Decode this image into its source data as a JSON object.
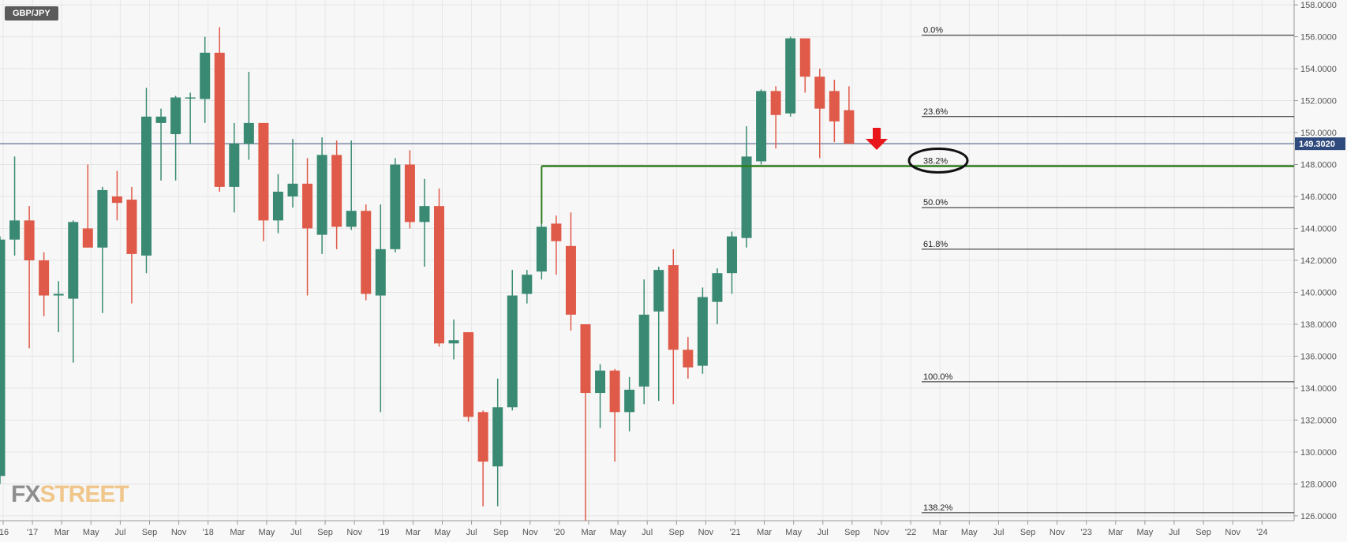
{
  "header": {
    "symbol": "GBP/JPY"
  },
  "watermark": {
    "part1": "FX",
    "part2": "STREET"
  },
  "chart_data": {
    "type": "candlestick",
    "title": "GBP/JPY",
    "timeframe": "monthly",
    "ylim": [
      125.7,
      158.3
    ],
    "y_ticks": [
      "126.0000",
      "128.0000",
      "130.0000",
      "132.0000",
      "134.0000",
      "136.0000",
      "138.0000",
      "140.0000",
      "142.0000",
      "144.0000",
      "146.0000",
      "148.0000",
      "150.0000",
      "152.0000",
      "154.0000",
      "156.0000",
      "158.0000"
    ],
    "x_ticks": [
      "'16",
      "'17",
      "Mar",
      "May",
      "Jul",
      "Sep",
      "Nov",
      "'18",
      "Mar",
      "May",
      "Jul",
      "Sep",
      "Nov",
      "'19",
      "Mar",
      "May",
      "Jul",
      "Sep",
      "Nov",
      "'20",
      "Mar",
      "May",
      "Jul",
      "Sep",
      "Nov",
      "'21",
      "Mar",
      "May",
      "Jul",
      "Sep",
      "Nov",
      "'22",
      "Mar",
      "May",
      "Jul",
      "Sep",
      "Nov",
      "'23",
      "Mar",
      "May",
      "Jul",
      "Sep",
      "Nov",
      "'24"
    ],
    "candles": [
      {
        "date": "2016-12",
        "o": 128.5,
        "h": 143.5,
        "l": 128.0,
        "c": 143.3
      },
      {
        "date": "2017-01",
        "o": 143.3,
        "h": 148.5,
        "l": 142.3,
        "c": 144.5
      },
      {
        "date": "2017-02",
        "o": 144.5,
        "h": 145.4,
        "l": 136.5,
        "c": 142.0
      },
      {
        "date": "2017-03",
        "o": 142.0,
        "h": 142.5,
        "l": 138.5,
        "c": 139.8
      },
      {
        "date": "2017-04",
        "o": 139.8,
        "h": 140.7,
        "l": 137.5,
        "c": 139.9
      },
      {
        "date": "2017-05",
        "o": 139.6,
        "h": 144.5,
        "l": 135.6,
        "c": 144.4
      },
      {
        "date": "2017-06",
        "o": 144.0,
        "h": 148.0,
        "l": 142.8,
        "c": 142.8
      },
      {
        "date": "2017-07",
        "o": 142.8,
        "h": 146.6,
        "l": 138.7,
        "c": 146.4
      },
      {
        "date": "2017-08",
        "o": 146.0,
        "h": 147.6,
        "l": 144.5,
        "c": 145.6
      },
      {
        "date": "2017-09",
        "o": 145.8,
        "h": 146.6,
        "l": 139.3,
        "c": 142.4
      },
      {
        "date": "2017-10",
        "o": 142.3,
        "h": 152.8,
        "l": 141.2,
        "c": 151.0
      },
      {
        "date": "2017-11",
        "o": 150.6,
        "h": 151.5,
        "l": 147.0,
        "c": 151.0
      },
      {
        "date": "2017-12",
        "o": 149.9,
        "h": 152.3,
        "l": 147.0,
        "c": 152.2
      },
      {
        "date": "2018-01",
        "o": 152.2,
        "h": 152.5,
        "l": 149.3,
        "c": 152.2
      },
      {
        "date": "2018-02",
        "o": 152.1,
        "h": 156.0,
        "l": 150.6,
        "c": 155.0
      },
      {
        "date": "2018-03",
        "o": 155.0,
        "h": 156.6,
        "l": 146.3,
        "c": 146.6
      },
      {
        "date": "2018-04",
        "o": 146.6,
        "h": 150.6,
        "l": 145.0,
        "c": 149.3
      },
      {
        "date": "2018-05",
        "o": 149.3,
        "h": 153.8,
        "l": 148.3,
        "c": 150.6
      },
      {
        "date": "2018-06",
        "o": 150.6,
        "h": 150.6,
        "l": 143.2,
        "c": 144.5
      },
      {
        "date": "2018-07",
        "o": 144.5,
        "h": 147.4,
        "l": 143.7,
        "c": 146.3
      },
      {
        "date": "2018-08",
        "o": 146.0,
        "h": 149.6,
        "l": 145.3,
        "c": 146.8
      },
      {
        "date": "2018-09",
        "o": 146.8,
        "h": 148.4,
        "l": 139.8,
        "c": 144.0
      },
      {
        "date": "2018-10",
        "o": 143.6,
        "h": 149.7,
        "l": 142.4,
        "c": 148.6
      },
      {
        "date": "2018-11",
        "o": 148.6,
        "h": 149.5,
        "l": 142.7,
        "c": 144.1
      },
      {
        "date": "2018-12",
        "o": 144.1,
        "h": 149.5,
        "l": 143.9,
        "c": 145.1
      },
      {
        "date": "2019-01",
        "o": 145.1,
        "h": 145.5,
        "l": 139.5,
        "c": 139.9
      },
      {
        "date": "2019-02",
        "o": 139.8,
        "h": 145.5,
        "l": 132.5,
        "c": 142.7
      },
      {
        "date": "2019-03",
        "o": 142.7,
        "h": 148.4,
        "l": 142.5,
        "c": 148.0
      },
      {
        "date": "2019-04",
        "o": 148.0,
        "h": 148.9,
        "l": 144.0,
        "c": 144.4
      },
      {
        "date": "2019-05",
        "o": 144.4,
        "h": 147.1,
        "l": 141.6,
        "c": 145.4
      },
      {
        "date": "2019-06",
        "o": 145.4,
        "h": 146.5,
        "l": 136.6,
        "c": 136.8
      },
      {
        "date": "2019-07",
        "o": 136.8,
        "h": 138.3,
        "l": 135.8,
        "c": 137.0
      },
      {
        "date": "2019-08",
        "o": 137.5,
        "h": 137.5,
        "l": 131.9,
        "c": 132.2
      },
      {
        "date": "2019-09",
        "o": 132.5,
        "h": 132.6,
        "l": 126.6,
        "c": 129.4
      },
      {
        "date": "2019-10",
        "o": 129.1,
        "h": 134.6,
        "l": 126.6,
        "c": 132.8
      },
      {
        "date": "2019-11",
        "o": 132.8,
        "h": 141.4,
        "l": 132.6,
        "c": 139.8
      },
      {
        "date": "2019-12",
        "o": 139.9,
        "h": 141.4,
        "l": 139.3,
        "c": 141.1
      },
      {
        "date": "2019-12b",
        "o": 141.3,
        "h": 147.9,
        "l": 140.8,
        "c": 144.1
      },
      {
        "date": "2020-01",
        "o": 144.3,
        "h": 144.8,
        "l": 141.1,
        "c": 143.2
      },
      {
        "date": "2020-02",
        "o": 142.9,
        "h": 145.0,
        "l": 137.6,
        "c": 138.6
      },
      {
        "date": "2020-03",
        "o": 138.0,
        "h": 138.0,
        "l": 125.7,
        "c": 133.7
      },
      {
        "date": "2020-04",
        "o": 133.7,
        "h": 135.5,
        "l": 131.5,
        "c": 135.1
      },
      {
        "date": "2020-05",
        "o": 135.1,
        "h": 135.2,
        "l": 129.4,
        "c": 132.5
      },
      {
        "date": "2020-06",
        "o": 132.5,
        "h": 134.7,
        "l": 131.3,
        "c": 133.9
      },
      {
        "date": "2020-07",
        "o": 134.1,
        "h": 140.8,
        "l": 133.0,
        "c": 138.6
      },
      {
        "date": "2020-08",
        "o": 138.8,
        "h": 141.6,
        "l": 133.2,
        "c": 141.4
      },
      {
        "date": "2020-09",
        "o": 141.7,
        "h": 142.7,
        "l": 133.0,
        "c": 136.4
      },
      {
        "date": "2020-10",
        "o": 136.4,
        "h": 137.2,
        "l": 134.6,
        "c": 135.3
      },
      {
        "date": "2020-11",
        "o": 135.4,
        "h": 140.3,
        "l": 134.9,
        "c": 139.7
      },
      {
        "date": "2020-12",
        "o": 139.4,
        "h": 141.5,
        "l": 138.0,
        "c": 141.2
      },
      {
        "date": "2021-01",
        "o": 141.2,
        "h": 143.8,
        "l": 139.9,
        "c": 143.5
      },
      {
        "date": "2021-02",
        "o": 143.4,
        "h": 150.4,
        "l": 142.8,
        "c": 148.5
      },
      {
        "date": "2021-03",
        "o": 148.2,
        "h": 152.7,
        "l": 148.0,
        "c": 152.6
      },
      {
        "date": "2021-04",
        "o": 152.6,
        "h": 152.9,
        "l": 149.0,
        "c": 151.1
      },
      {
        "date": "2021-05",
        "o": 151.2,
        "h": 156.0,
        "l": 151.0,
        "c": 155.9
      },
      {
        "date": "2021-06",
        "o": 155.9,
        "h": 155.9,
        "l": 152.5,
        "c": 153.5
      },
      {
        "date": "2021-07",
        "o": 153.5,
        "h": 154.0,
        "l": 148.4,
        "c": 151.5
      },
      {
        "date": "2021-08",
        "o": 152.6,
        "h": 153.3,
        "l": 149.4,
        "c": 150.7
      },
      {
        "date": "2021-09",
        "o": 151.4,
        "h": 152.9,
        "l": 149.5,
        "c": 149.3
      }
    ],
    "up_color": "#3a8a73",
    "down_color": "#df5a48",
    "current_price": "149.3020",
    "current_price_value": 149.302,
    "support_level": 147.9,
    "fibonacci": [
      {
        "label": "0.0%",
        "value": 156.1
      },
      {
        "label": "23.6%",
        "value": 151.0
      },
      {
        "label": "38.2%",
        "value": 147.9
      },
      {
        "label": "50.0%",
        "value": 145.3
      },
      {
        "label": "61.8%",
        "value": 142.7
      },
      {
        "label": "100.0%",
        "value": 134.4
      },
      {
        "label": "138.2%",
        "value": 126.2
      }
    ]
  }
}
